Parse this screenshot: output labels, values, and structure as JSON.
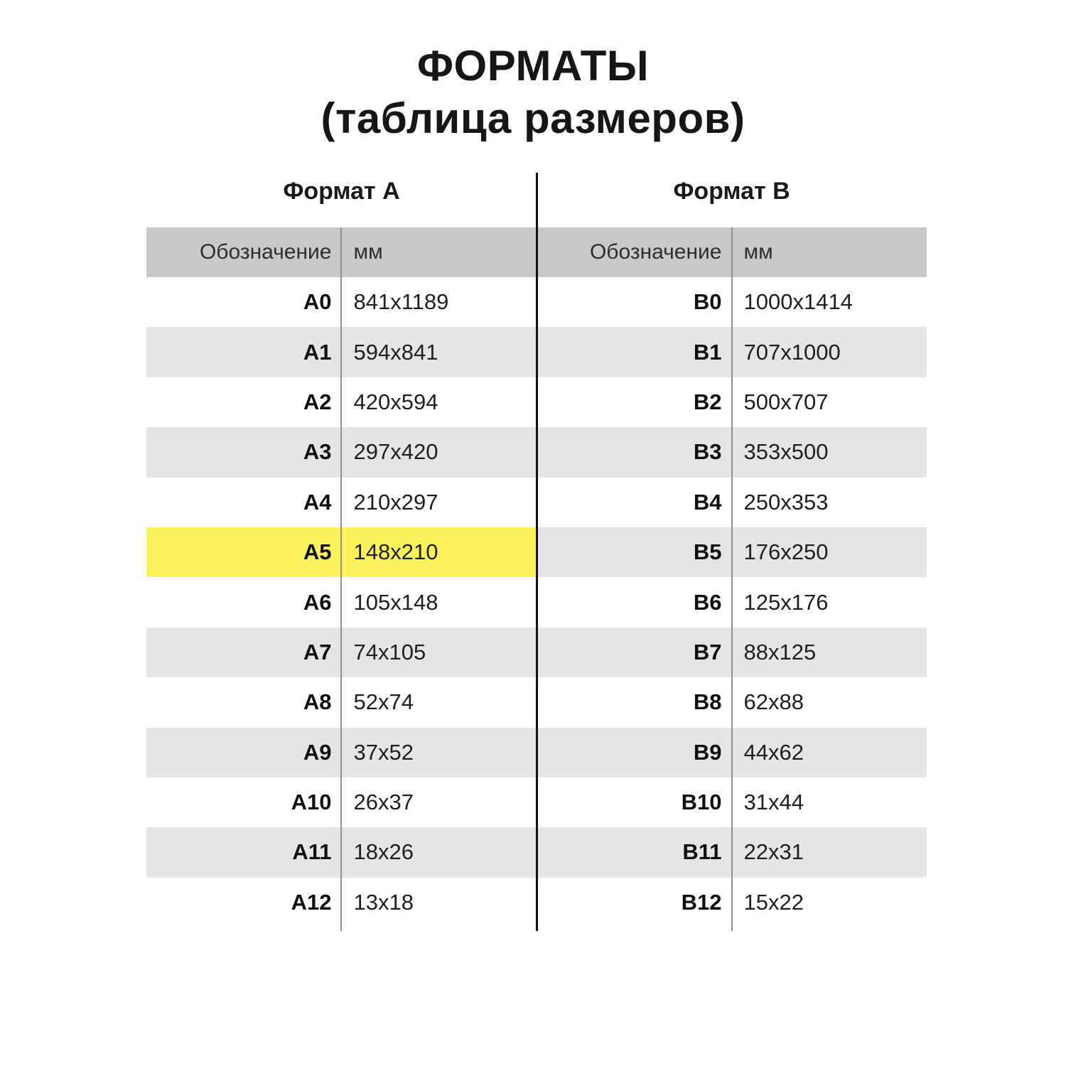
{
  "header": {
    "title_line1": "ФОРМАТЫ",
    "title_line2": "(таблица размеров)"
  },
  "colors": {
    "header_bg": "#c9c9c9",
    "row_alt_bg": "#e5e5e7",
    "highlight_bg": "#fbf25c",
    "divider_black": "#121212",
    "divider_gray": "#8f8f8f"
  },
  "highlighted_format": "A5",
  "tables": [
    {
      "title": "Формат А",
      "columns": [
        "Обозначение",
        "мм"
      ],
      "rows": [
        {
          "designation": "A0",
          "size_mm": "841x1189",
          "highlight": false
        },
        {
          "designation": "A1",
          "size_mm": "594x841",
          "highlight": false
        },
        {
          "designation": "A2",
          "size_mm": "420x594",
          "highlight": false
        },
        {
          "designation": "A3",
          "size_mm": "297x420",
          "highlight": false
        },
        {
          "designation": "A4",
          "size_mm": "210x297",
          "highlight": false
        },
        {
          "designation": "A5",
          "size_mm": "148x210",
          "highlight": true
        },
        {
          "designation": "A6",
          "size_mm": "105x148",
          "highlight": false
        },
        {
          "designation": "A7",
          "size_mm": "74x105",
          "highlight": false
        },
        {
          "designation": "A8",
          "size_mm": "52x74",
          "highlight": false
        },
        {
          "designation": "A9",
          "size_mm": "37x52",
          "highlight": false
        },
        {
          "designation": "A10",
          "size_mm": "26x37",
          "highlight": false
        },
        {
          "designation": "A11",
          "size_mm": "18x26",
          "highlight": false
        },
        {
          "designation": "A12",
          "size_mm": "13x18",
          "highlight": false
        }
      ]
    },
    {
      "title": "Формат B",
      "columns": [
        "Обозначение",
        "мм"
      ],
      "rows": [
        {
          "designation": "B0",
          "size_mm": "1000x1414",
          "highlight": false
        },
        {
          "designation": "B1",
          "size_mm": "707x1000",
          "highlight": false
        },
        {
          "designation": "B2",
          "size_mm": "500x707",
          "highlight": false
        },
        {
          "designation": "B3",
          "size_mm": "353x500",
          "highlight": false
        },
        {
          "designation": "B4",
          "size_mm": "250x353",
          "highlight": false
        },
        {
          "designation": "B5",
          "size_mm": "176x250",
          "highlight": false
        },
        {
          "designation": "B6",
          "size_mm": "125x176",
          "highlight": false
        },
        {
          "designation": "B7",
          "size_mm": "88x125",
          "highlight": false
        },
        {
          "designation": "B8",
          "size_mm": "62x88",
          "highlight": false
        },
        {
          "designation": "B9",
          "size_mm": "44x62",
          "highlight": false
        },
        {
          "designation": "B10",
          "size_mm": "31x44",
          "highlight": false
        },
        {
          "designation": "B11",
          "size_mm": "22x31",
          "highlight": false
        },
        {
          "designation": "B12",
          "size_mm": "15x22",
          "highlight": false
        }
      ]
    }
  ]
}
